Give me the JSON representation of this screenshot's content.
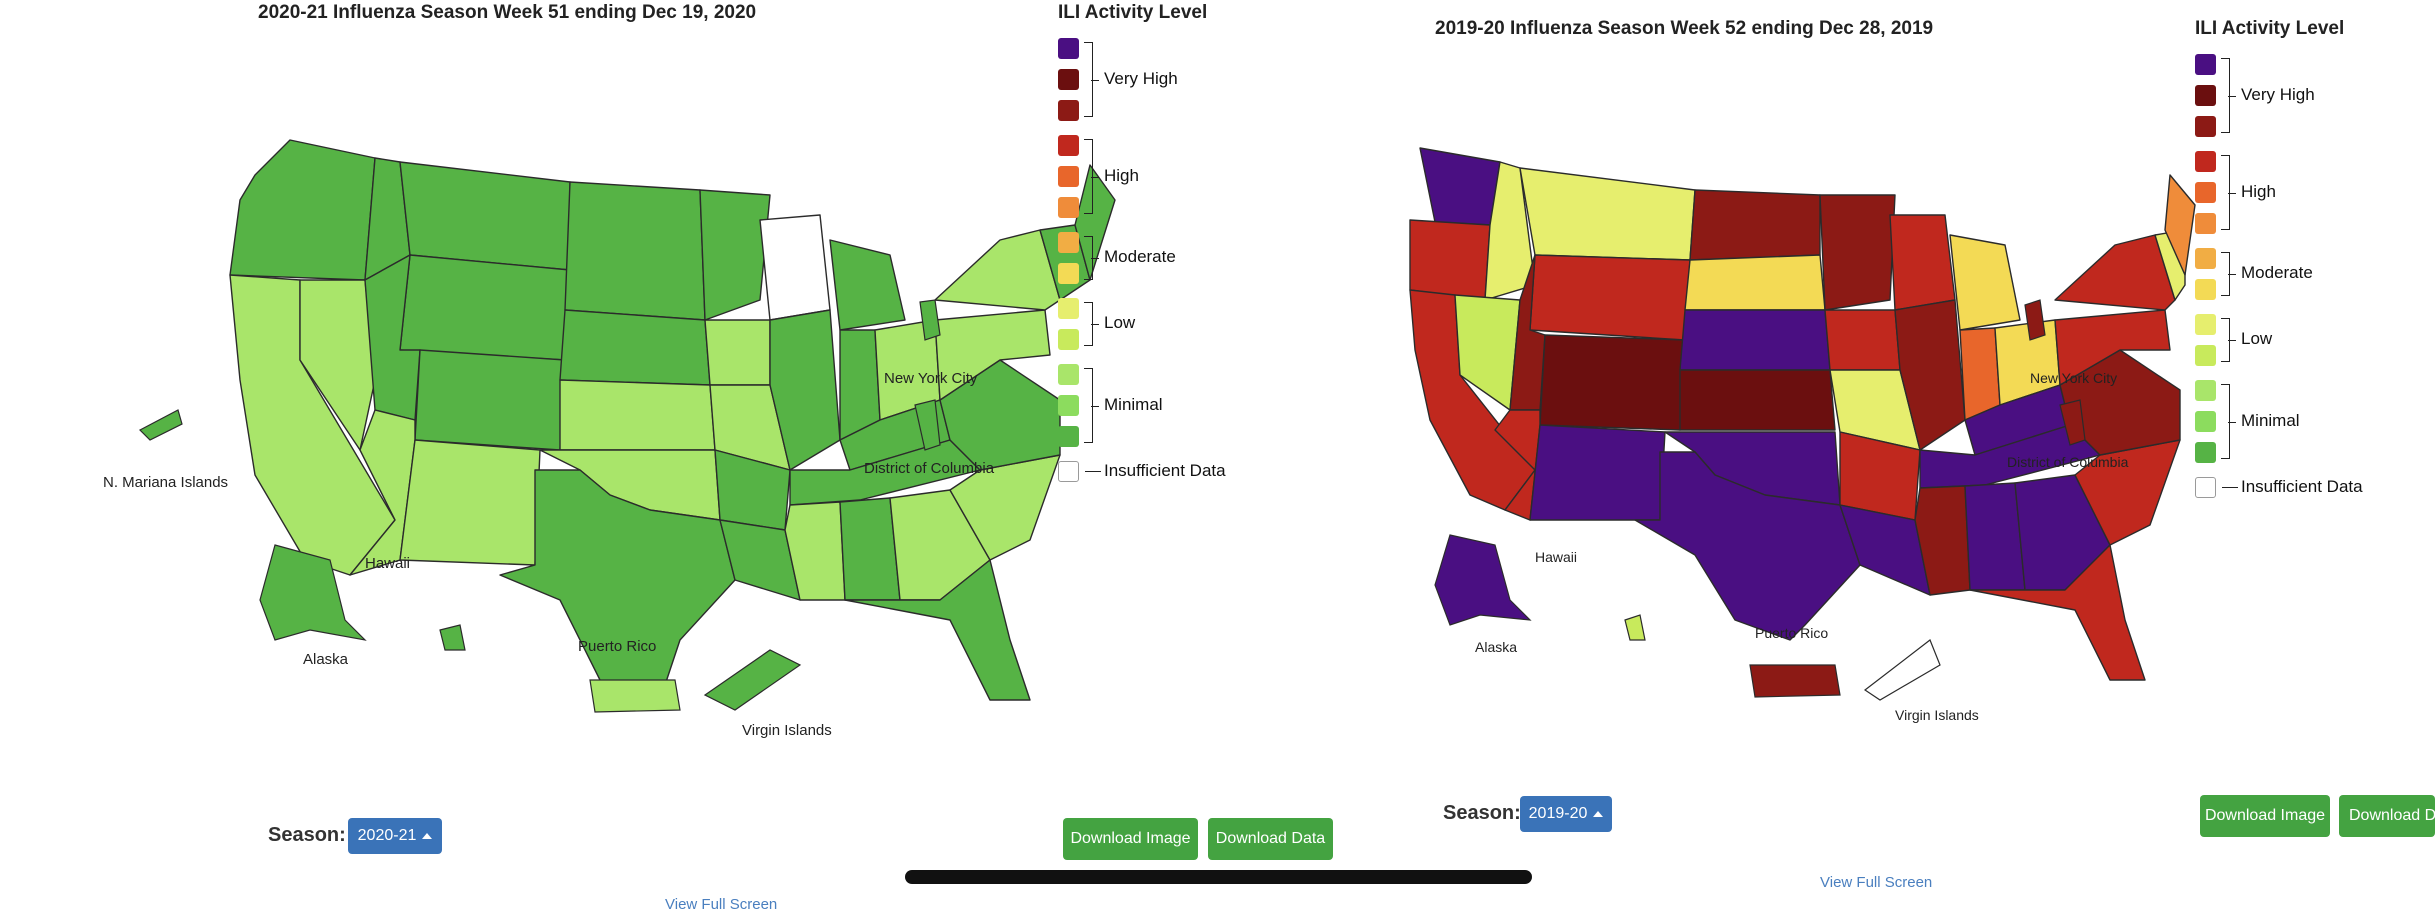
{
  "colors": {
    "very_high_3": "#4a0f82",
    "very_high_2": "#6b0f0f",
    "very_high_1": "#8c1a15",
    "high_3": "#c0281e",
    "high_2": "#e8662b",
    "high_1": "#ef8c3a",
    "moderate_2": "#f1ad44",
    "moderate_1": "#f3da55",
    "low_2": "#e6ee6e",
    "low_1": "#c8ea5c",
    "minimal_3": "#a9e56a",
    "minimal_2": "#8cdc5e",
    "minimal_1": "#56b345",
    "insufficient": "#ffffff",
    "button_green": "#44a341",
    "select_blue": "#3a73b8",
    "link_blue": "#4a7fbf"
  },
  "legend": {
    "title": "ILI Activity Level",
    "groups": [
      {
        "label": "Very High",
        "levels": [
          "very_high_3",
          "very_high_2",
          "very_high_1"
        ]
      },
      {
        "label": "High",
        "levels": [
          "high_3",
          "high_2",
          "high_1"
        ]
      },
      {
        "label": "Moderate",
        "levels": [
          "moderate_2",
          "moderate_1"
        ]
      },
      {
        "label": "Low",
        "levels": [
          "low_2",
          "low_1"
        ]
      },
      {
        "label": "Minimal",
        "levels": [
          "minimal_3",
          "minimal_2",
          "minimal_1"
        ]
      }
    ],
    "insufficient_label": "Insufficient Data"
  },
  "panels": [
    {
      "title": "2020-21 Influenza Season Week 51 ending Dec 19, 2020",
      "territory_labels": {
        "mariana": "N. Mariana Islands",
        "hawaii": "Hawaii",
        "alaska": "Alaska",
        "puerto_rico": "Puerto Rico",
        "virgin_islands": "Virgin Islands",
        "nyc": "New York City",
        "dc": "District of Columbia"
      },
      "region_levels": {
        "pacific_nw": "minimal_1",
        "california": "minimal_3",
        "nevada": "minimal_3",
        "idaho": "minimal_1",
        "montana": "minimal_1",
        "wyoming": "minimal_1",
        "utah": "minimal_1",
        "colorado": "minimal_1",
        "arizona": "minimal_3",
        "new_mexico": "minimal_3",
        "dakotas": "minimal_1",
        "nebraska": "minimal_1",
        "kansas": "minimal_3",
        "oklahoma": "minimal_3",
        "texas": "minimal_1",
        "minnesota": "minimal_1",
        "iowa": "minimal_3",
        "missouri": "minimal_3",
        "arkansas": "minimal_1",
        "louisiana": "minimal_1",
        "wisconsin": "insufficient",
        "illinois": "minimal_1",
        "michigan": "minimal_1",
        "indiana": "minimal_1",
        "ohio": "minimal_3",
        "kentucky": "minimal_1",
        "tennessee": "minimal_1",
        "mississippi": "minimal_3",
        "alabama": "minimal_1",
        "georgia": "minimal_3",
        "florida": "minimal_1",
        "carolinas": "minimal_3",
        "virginia": "minimal_1",
        "pennsylvania": "minimal_3",
        "new_york": "minimal_3",
        "new_england": "minimal_1",
        "maine": "minimal_1",
        "alaska": "minimal_1",
        "hawaii": "minimal_1",
        "puerto_rico": "minimal_3",
        "virgin_islands": "minimal_1",
        "nyc": "minimal_1",
        "dc": "minimal_1",
        "mariana": "minimal_1"
      },
      "season": {
        "label": "Season:",
        "value": "2020-21"
      },
      "buttons": {
        "download_image": "Download Image",
        "download_data": "Download Data"
      },
      "view_full_screen": "View Full Screen"
    },
    {
      "title": "2019-20 Influenza Season Week 52 ending Dec 28, 2019",
      "territory_labels": {
        "hawaii": "Hawaii",
        "alaska": "Alaska",
        "puerto_rico": "Puerto Rico",
        "virgin_islands": "Virgin Islands",
        "nyc": "New York City",
        "dc": "District of Columbia"
      },
      "region_levels": {
        "pacific_nw": "high_3",
        "washington": "very_high_3",
        "california": "high_3",
        "nevada": "low_1",
        "idaho": "low_2",
        "montana": "low_2",
        "wyoming": "high_3",
        "utah": "very_high_1",
        "colorado": "very_high_2",
        "arizona": "high_3",
        "new_mexico": "very_high_3",
        "north_dakota": "very_high_1",
        "south_dakota": "moderate_1",
        "nebraska": "very_high_3",
        "kansas": "very_high_2",
        "oklahoma": "very_high_3",
        "texas": "very_high_3",
        "minnesota": "very_high_1",
        "iowa": "high_3",
        "missouri": "low_2",
        "arkansas": "high_3",
        "louisiana": "very_high_3",
        "wisconsin": "high_3",
        "illinois": "very_high_1",
        "michigan": "moderate_1",
        "indiana": "high_2",
        "ohio": "moderate_1",
        "kentucky": "very_high_3",
        "tennessee": "very_high_3",
        "mississippi": "very_high_1",
        "alabama": "very_high_3",
        "georgia": "very_high_3",
        "florida": "high_3",
        "carolinas": "high_3",
        "virginia": "very_high_1",
        "pennsylvania": "high_3",
        "new_york": "high_3",
        "new_england": "low_2",
        "maine": "high_1",
        "alaska": "very_high_3",
        "hawaii": "low_1",
        "puerto_rico": "very_high_1",
        "virgin_islands": "insufficient",
        "nyc": "very_high_1",
        "dc": "very_high_1"
      },
      "season": {
        "label": "Season:",
        "value": "2019-20"
      },
      "buttons": {
        "download_image": "Download Image",
        "download_data": "Download Data"
      },
      "view_full_screen": "View Full Screen"
    }
  ]
}
